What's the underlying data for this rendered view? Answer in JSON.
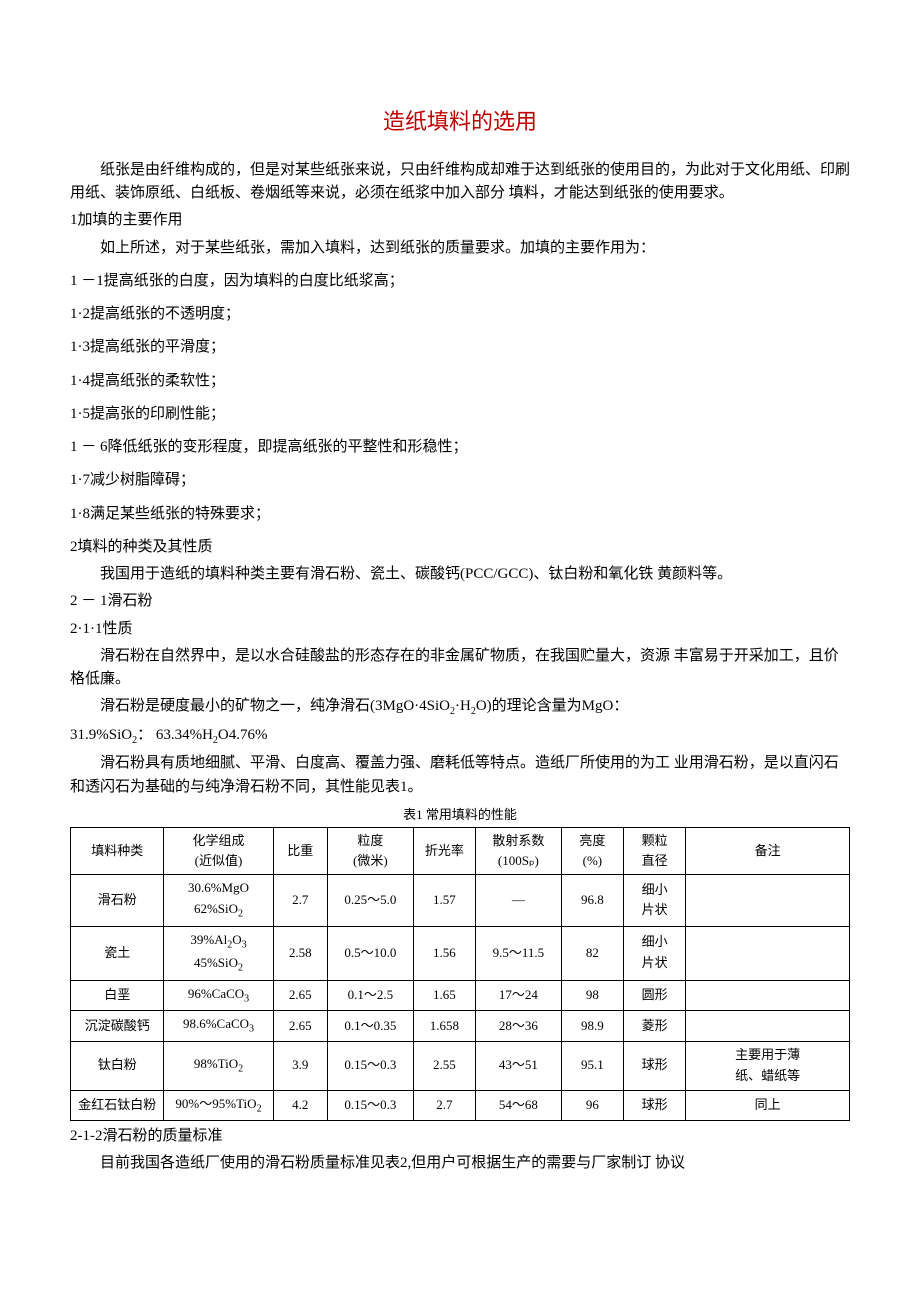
{
  "title": "造纸填料的选用",
  "intro": "纸张是由纤维构成的，但是对某些纸张来说，只由纤维构成却难于达到纸张的使用目的，为此对于文化用纸、印刷用纸、装饰原纸、白纸板、卷烟纸等来说，必须在纸浆中加入部分 填料，才能达到纸张的使用要求。",
  "s1": {
    "heading": "1加填的主要作用",
    "lead": "如上所述，对于某些纸张，需加入填料，达到纸张的质量要求。加填的主要作用为：",
    "items": [
      "1 －1提高纸张的白度，因为填料的白度比纸浆高；",
      "1·2提高纸张的不透明度；",
      "1·3提高纸张的平滑度；",
      "1·4提高纸张的柔软性；",
      "1·5提高张的印刷性能；",
      "1 － 6降低纸张的变形程度，即提高纸张的平整性和形稳性；",
      "1·7减少树脂障碍；",
      "1·8满足某些纸张的特殊要求；"
    ]
  },
  "s2": {
    "heading": "2填料的种类及其性质",
    "lead": "我国用于造纸的填料种类主要有滑石粉、瓷土、碳酸钙(PCC/GCC)、钛白粉和氧化铁 黄颜料等。",
    "s21": "2 － 1滑石粉",
    "s211": "2·1·1性质",
    "p1": "滑石粉在自然界中，是以水合硅酸盐的形态存在的非金属矿物质，在我国贮量大，资源 丰富易于开采加工，且价格低廉。",
    "p2a": "滑石粉是硬度最小的矿物之一，纯净滑石(3MgO·4SiO",
    "p2a_sub1": "2",
    "p2b": "·H",
    "p2b_sub": "2",
    "p2c": "O)的理论含量为MgO：",
    "p3a": "31.9%SiO",
    "p3a_sub": "2",
    "p3b": "：   63.34%H",
    "p3b_sub": "2",
    "p3c": "O4.76%",
    "p4": "滑石粉具有质地细腻、平滑、白度高、覆盖力强、磨耗低等特点。造纸厂所使用的为工 业用滑石粉，是以直闪石和透闪石为基础的与纯净滑石粉不同，其性能见表1。"
  },
  "table1": {
    "caption": "表1 常用填料的性能",
    "headers": [
      "填料种类",
      "化学组成\n(近似值)",
      "比重",
      "粒度\n(微米)",
      "折光率",
      "散射系数\n(100Sₚ)",
      "亮度\n(%)",
      "颗粒\n直径",
      "备注"
    ],
    "col_widths": [
      "12%",
      "14%",
      "7%",
      "11%",
      "8%",
      "11%",
      "8%",
      "8%",
      "21%"
    ],
    "rows": [
      {
        "name": "滑石粉",
        "chem_html": "30.6%MgO<br>62%SiO<span class=\"sub\">2</span>",
        "sg": "2.7",
        "size": "0.25〜5.0",
        "ri": "1.57",
        "scat": "—",
        "bright": "96.8",
        "shape": "细小\n片状",
        "note": ""
      },
      {
        "name": "瓷土",
        "chem_html": "39%Al<span class=\"sub\">2</span>O<span class=\"sub\">3</span><br>45%SiO<span class=\"sub\">2</span>",
        "sg": "2.58",
        "size": "0.5〜10.0",
        "ri": "1.56",
        "scat": "9.5〜11.5",
        "bright": "82",
        "shape": "细小\n片状",
        "note": ""
      },
      {
        "name": "白垩",
        "chem_html": "96%CaCO<span class=\"sub\">3</span>",
        "sg": "2.65",
        "size": "0.1〜2.5",
        "ri": "1.65",
        "scat": "17〜24",
        "bright": "98",
        "shape": "圆形",
        "note": ""
      },
      {
        "name": "沉淀碳酸钙",
        "chem_html": "98.6%CaCO<span class=\"sub\">3</span>",
        "sg": "2.65",
        "size": "0.1〜0.35",
        "ri": "1.658",
        "scat": "28〜36",
        "bright": "98.9",
        "shape": "菱形",
        "note": ""
      },
      {
        "name": "钛白粉",
        "chem_html": "98%TiO<span class=\"sub\">2</span>",
        "sg": "3.9",
        "size": "0.15〜0.3",
        "ri": "2.55",
        "scat": "43〜51",
        "bright": "95.1",
        "shape": "球形",
        "note": "主要用于薄\n纸、蜡纸等"
      },
      {
        "name": "金红石钛白粉",
        "chem_html": "90%〜95%TiO<span class=\"sub\">2</span>",
        "sg": "4.2",
        "size": "0.15〜0.3",
        "ri": "2.7",
        "scat": "54〜68",
        "bright": "96",
        "shape": "球形",
        "note": "同上"
      }
    ]
  },
  "s212": {
    "heading": "2-1-2滑石粉的质量标准",
    "p": "目前我国各造纸厂使用的滑石粉质量标准见表2,但用户可根据生产的需要与厂家制订 协议"
  },
  "colors": {
    "title": "#c00000",
    "text": "#000000",
    "background": "#ffffff",
    "border": "#000000"
  }
}
